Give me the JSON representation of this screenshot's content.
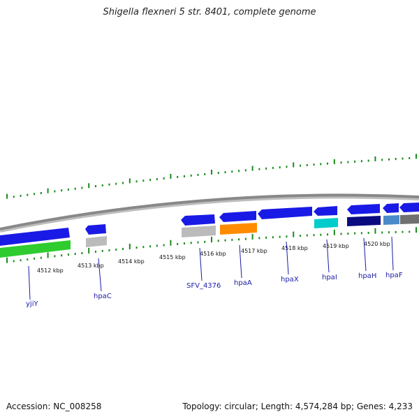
{
  "header": {
    "title": "Shigella flexneri 5 str. 8401, complete genome"
  },
  "footer": {
    "accession": "Accession: NC_008258",
    "summary": "Topology: circular; Length: 4,574,284 bp; Genes: 4,233"
  },
  "scale_labels": [
    "4512 kbp",
    "4513 kbp",
    "4514 kbp",
    "4515 kbp",
    "4516 kbp",
    "4517 kbp",
    "4518 kbp",
    "4519 kbp",
    "4520 kbp"
  ],
  "genes": [
    {
      "name": "yjiY"
    },
    {
      "name": "hpaC"
    },
    {
      "name": "SFV_4376"
    },
    {
      "name": "hpaA"
    },
    {
      "name": "hpaX"
    },
    {
      "name": "hpaI"
    },
    {
      "name": "hpaH"
    },
    {
      "name": "hpaF"
    }
  ],
  "colors": {
    "gene_blue": "#1a1ae6",
    "gene_blue_dark": "#000080",
    "backbone": "#888888",
    "tick_green": "#1a8a1a",
    "label_blue": "#1a1aa6",
    "green_feature": "#2ecc2e",
    "orange_feature": "#ff8c00",
    "cyan_feature": "#00cccc",
    "navy_feature": "#0a0a80",
    "steel_feature": "#4a8ac8",
    "gray_feature": "#bbbbbb",
    "darkgray_feature": "#707070"
  }
}
